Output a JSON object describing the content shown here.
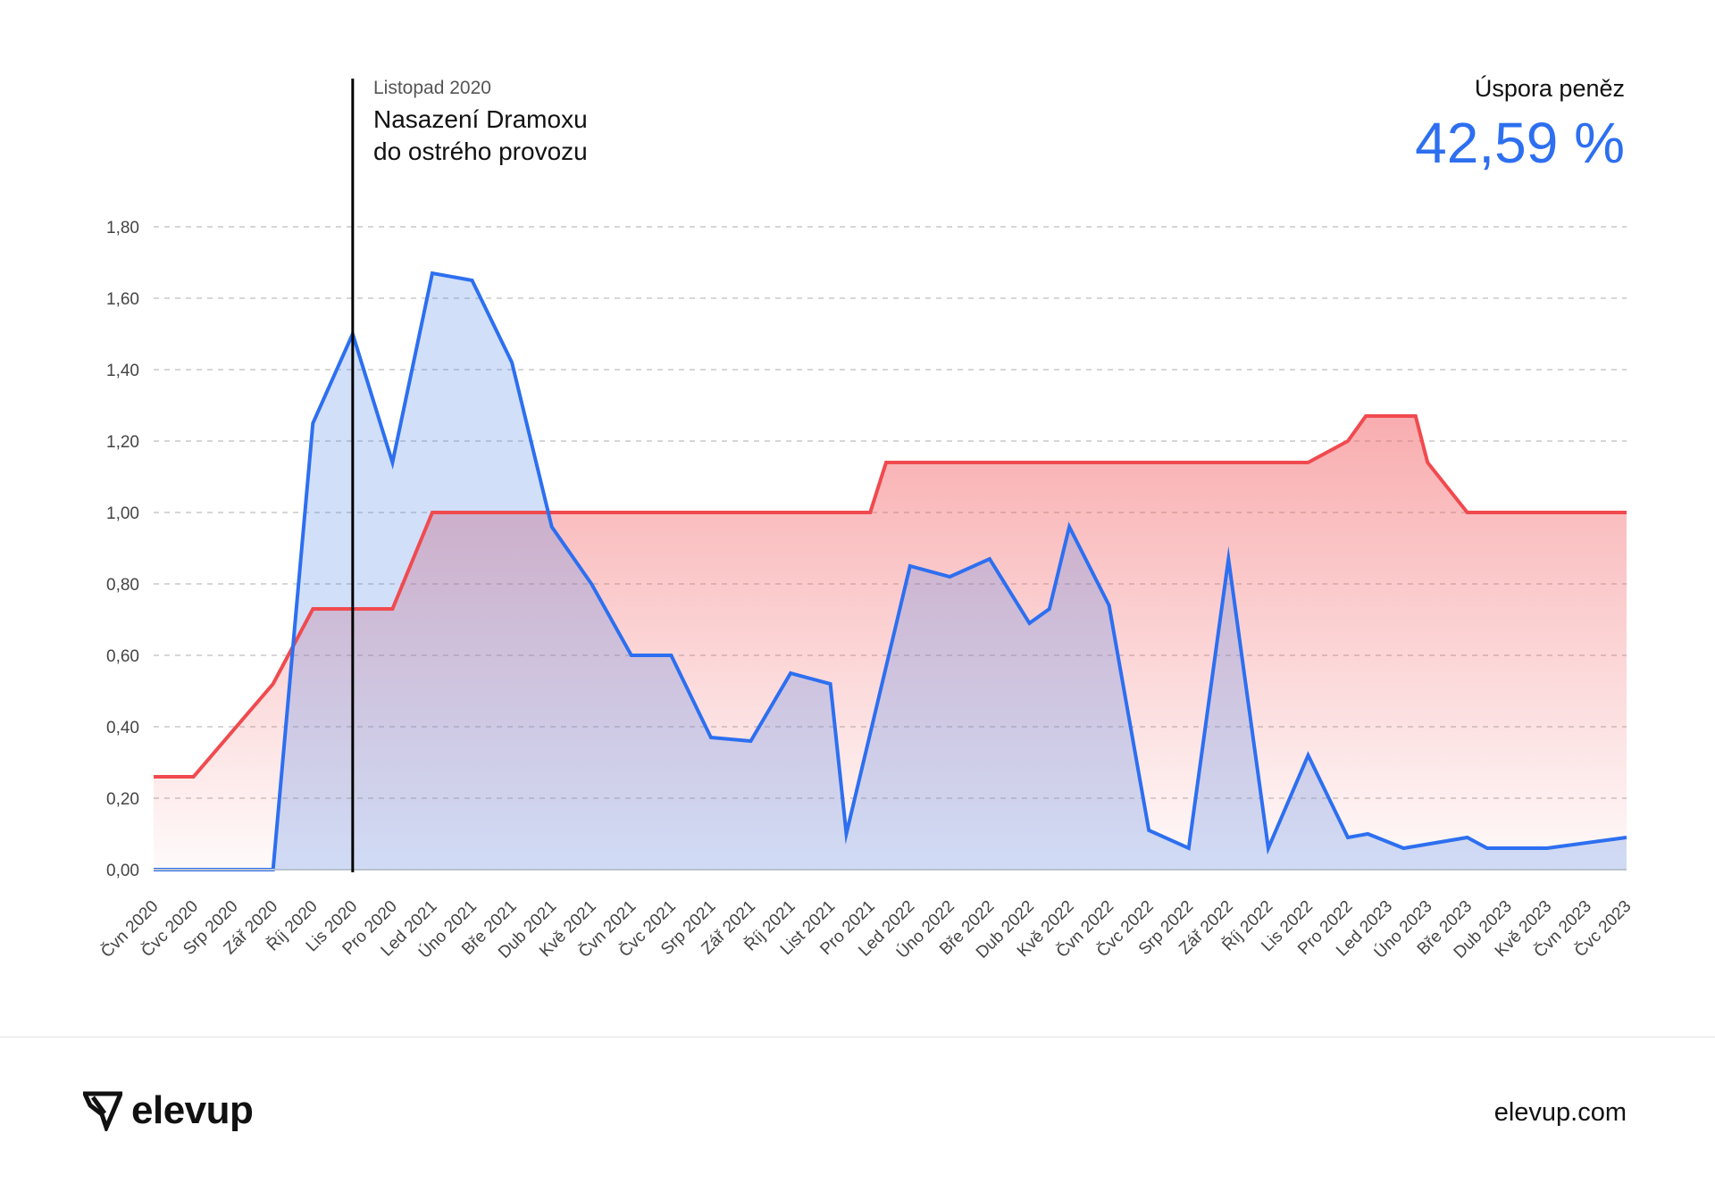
{
  "chart_data": {
    "type": "area",
    "title": "",
    "xlabel": "",
    "ylabel": "",
    "ylim": [
      0,
      1.8
    ],
    "y_ticks": [
      "0,00",
      "0,20",
      "0,40",
      "0,60",
      "0,80",
      "1,00",
      "1,20",
      "1,40",
      "1,60",
      "1,80"
    ],
    "categories": [
      "Čvn 2020",
      "Čvc 2020",
      "Srp 2020",
      "Zář 2020",
      "Říj 2020",
      "Lis 2020",
      "Pro 2020",
      "Led 2021",
      "Úno 2021",
      "Bře 2021",
      "Dub 2021",
      "Kvě 2021",
      "Čvn 2021",
      "Čvc 2021",
      "Srp 2021",
      "Zář 2021",
      "Říj 2021",
      "List 2021",
      "Pro 2021",
      "Led 2022",
      "Úno 2022",
      "Bře 2022",
      "Dub 2022",
      "Kvě 2022",
      "Čvn 2022",
      "Čvc 2022",
      "Srp 2022",
      "Zář 2022",
      "Říj 2022",
      "Lis 2022",
      "Pro 2022",
      "Led 2023",
      "Úno 2023",
      "Bře 2023",
      "Dub 2023",
      "Kvě 2023",
      "Čvn 2023",
      "Čvc 2023"
    ],
    "grid": true,
    "series": [
      {
        "color": "#f04a4f",
        "points": [
          [
            0,
            0.26
          ],
          [
            1,
            0.26
          ],
          [
            3,
            0.52
          ],
          [
            4,
            0.73
          ],
          [
            6,
            0.73
          ],
          [
            7,
            1.0
          ],
          [
            18,
            1.0
          ],
          [
            18.4,
            1.14
          ],
          [
            29,
            1.14
          ],
          [
            30,
            1.2
          ],
          [
            30.45,
            1.27
          ],
          [
            31.7,
            1.27
          ],
          [
            32,
            1.14
          ],
          [
            33,
            1.0
          ],
          [
            37,
            1.0
          ]
        ]
      },
      {
        "color": "#2d6ff0",
        "points": [
          [
            0,
            0
          ],
          [
            3,
            0
          ],
          [
            4,
            1.25
          ],
          [
            5,
            1.5
          ],
          [
            6,
            1.14
          ],
          [
            7,
            1.67
          ],
          [
            8,
            1.65
          ],
          [
            9,
            1.42
          ],
          [
            10,
            0.96
          ],
          [
            11,
            0.8
          ],
          [
            12,
            0.6
          ],
          [
            13,
            0.6
          ],
          [
            14,
            0.37
          ],
          [
            15,
            0.36
          ],
          [
            16,
            0.55
          ],
          [
            17,
            0.52
          ],
          [
            17.4,
            0.1
          ],
          [
            19,
            0.85
          ],
          [
            20,
            0.82
          ],
          [
            21,
            0.87
          ],
          [
            22,
            0.69
          ],
          [
            22.5,
            0.73
          ],
          [
            23,
            0.96
          ],
          [
            24,
            0.74
          ],
          [
            25,
            0.11
          ],
          [
            26,
            0.06
          ],
          [
            27,
            0.87
          ],
          [
            28,
            0.06
          ],
          [
            29,
            0.32
          ],
          [
            30,
            0.09
          ],
          [
            30.5,
            0.1
          ],
          [
            31.4,
            0.06
          ],
          [
            33,
            0.09
          ],
          [
            33.5,
            0.06
          ],
          [
            35,
            0.06
          ],
          [
            37,
            0.09
          ]
        ]
      }
    ],
    "annotations": [
      {
        "x": 5,
        "date": "Listopad 2020",
        "text_line1": "Nasazení Dramoxu",
        "text_line2": "do ostrého provozu"
      }
    ],
    "kpi": {
      "label": "Úspora peněz",
      "value": "42,59 %"
    }
  },
  "footer": {
    "logo_text": "elevup",
    "logo_icon": "elevup-logo-icon",
    "url": "elevup.com"
  },
  "colors": {
    "accent": "#2d6ff0",
    "red": "#f04a4f"
  }
}
